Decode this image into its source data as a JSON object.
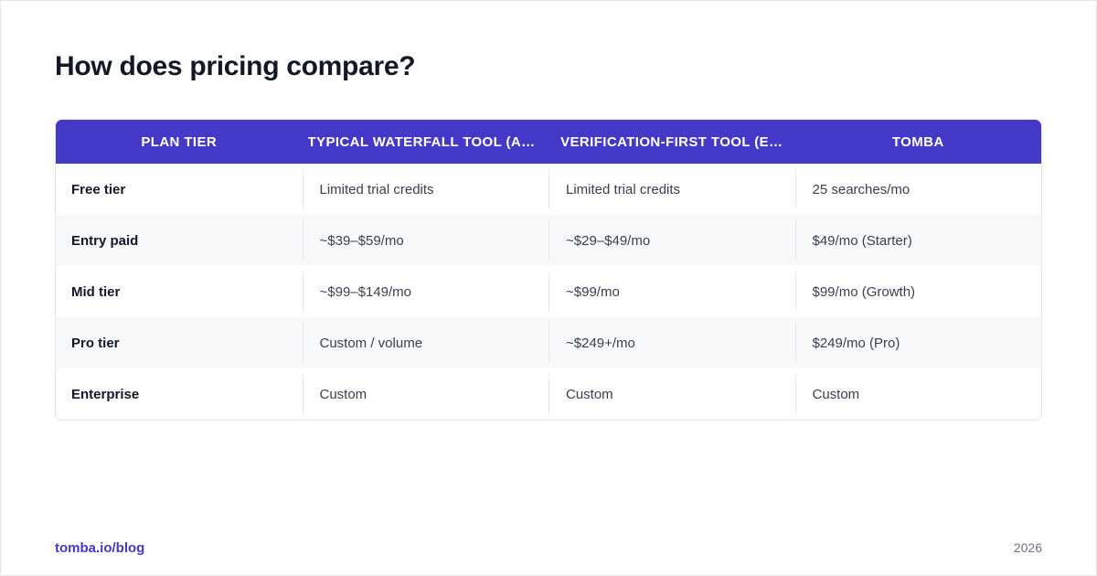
{
  "title": "How does pricing compare?",
  "colors": {
    "header_bg": "#4438c9",
    "accent": "#4438c9",
    "alt_row": "#f8f9fb"
  },
  "table": {
    "headers": [
      "PLAN TIER",
      "TYPICAL WATERFALL TOOL (AD…",
      "VERIFICATION-FIRST TOOL (E…",
      "TOMBA"
    ],
    "rows": [
      [
        "Free tier",
        "Limited trial credits",
        "Limited trial credits",
        "25 searches/mo"
      ],
      [
        "Entry paid",
        "~$39–$59/mo",
        "~$29–$49/mo",
        "$49/mo (Starter)"
      ],
      [
        "Mid tier",
        "~$99–$149/mo",
        "~$99/mo",
        "$99/mo (Growth)"
      ],
      [
        "Pro tier",
        "Custom / volume",
        "~$249+/mo",
        "$249/mo (Pro)"
      ],
      [
        "Enterprise",
        "Custom",
        "Custom",
        "Custom"
      ]
    ]
  },
  "footer": {
    "link": "tomba.io/blog",
    "year": "2026"
  }
}
